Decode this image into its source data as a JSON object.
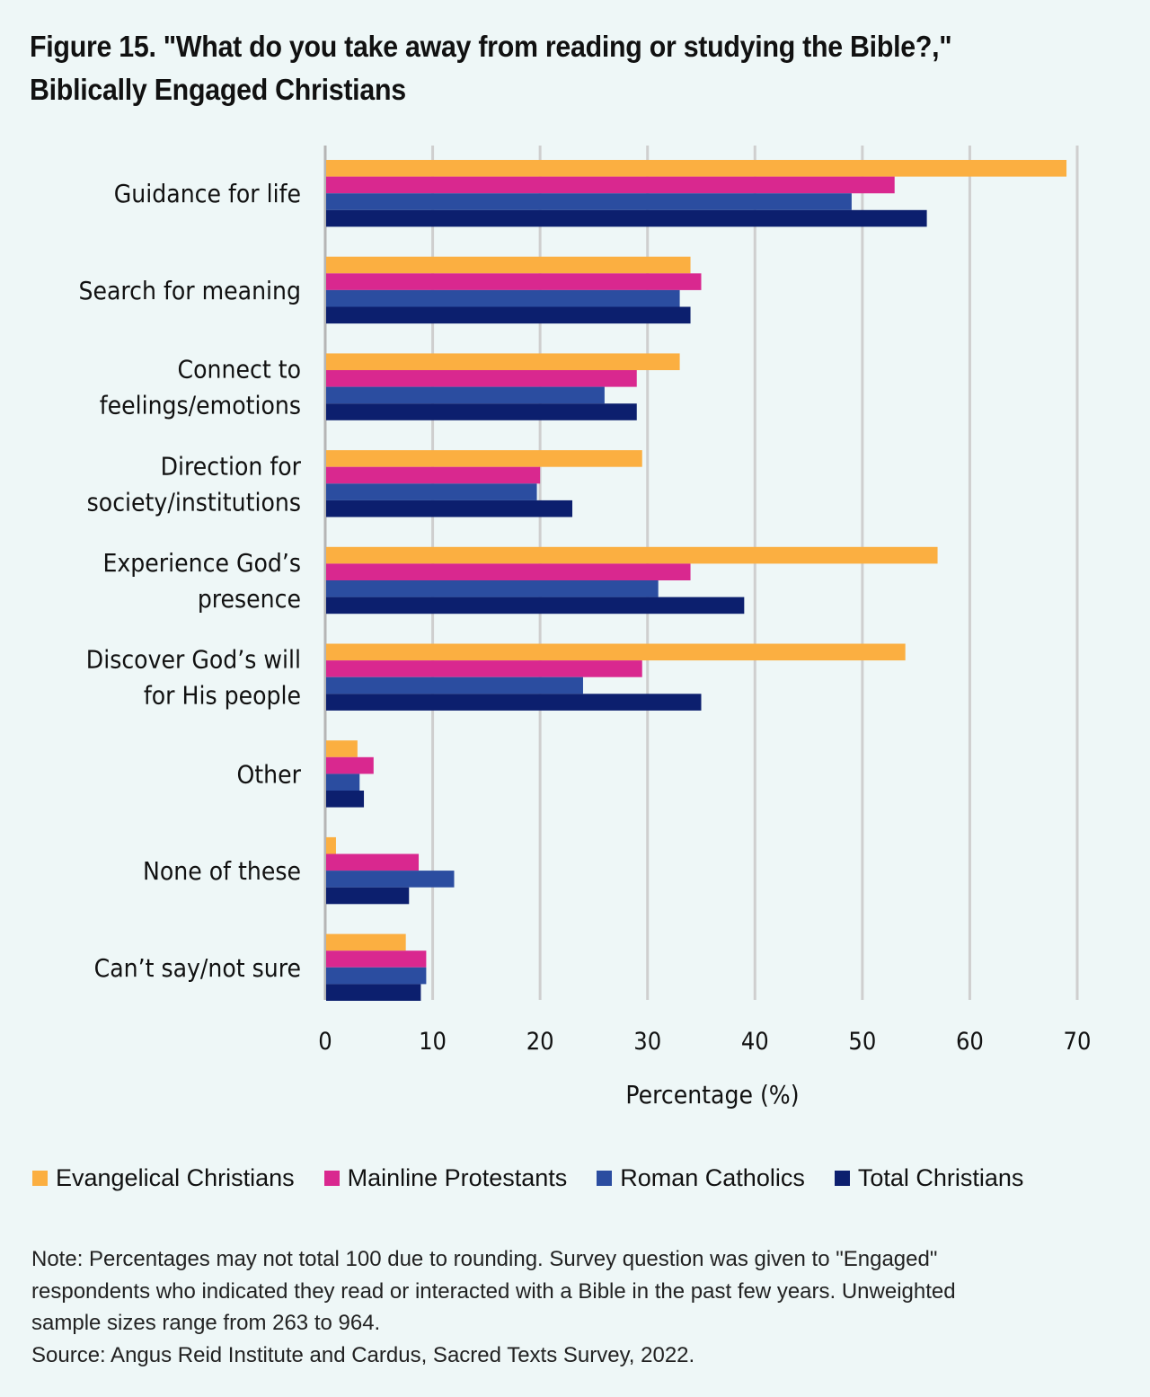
{
  "title_line1": "Figure 15. \"What do you take away from reading or studying the Bible?,\"",
  "title_line2": "Biblically Engaged Christians",
  "chart_data": {
    "type": "bar",
    "orientation": "horizontal",
    "title": "Figure 15. \"What do you take away from reading or studying the Bible?,\" Biblically Engaged Christians",
    "xlabel": "Percentage (%)",
    "ylabel": "",
    "xlim": [
      0,
      70
    ],
    "xticks": [
      0,
      10,
      20,
      30,
      40,
      50,
      60,
      70
    ],
    "grid": "vertical",
    "legend_position": "bottom",
    "categories": [
      [
        "Guidance for life"
      ],
      [
        "Search for meaning"
      ],
      [
        "Connect to",
        "feelings/emotions"
      ],
      [
        "Direction for",
        "society/institutions"
      ],
      [
        "Experience God’s",
        "presence"
      ],
      [
        "Discover God’s will",
        "for His people"
      ],
      [
        "Other"
      ],
      [
        "None of these"
      ],
      [
        "Can’t say/not sure"
      ]
    ],
    "series": [
      {
        "name": "Evangelical Christians",
        "color": "#fbaf41",
        "values": [
          69,
          34,
          33,
          29.5,
          57,
          54,
          3,
          1,
          7.5
        ]
      },
      {
        "name": "Mainline Protestants",
        "color": "#d9288f",
        "values": [
          53,
          35,
          29,
          20,
          34,
          29.5,
          4.5,
          8.7,
          9.4
        ]
      },
      {
        "name": "Roman Catholics",
        "color": "#2b4da0",
        "values": [
          49,
          33,
          26,
          19.7,
          31,
          24,
          3.2,
          12,
          9.4
        ]
      },
      {
        "name": "Total Christians",
        "color": "#0c1f6e",
        "values": [
          56,
          34,
          29,
          23,
          39,
          35,
          3.6,
          7.8,
          8.9
        ]
      }
    ]
  },
  "notes": [
    "Note: Percentages may not total 100 due to rounding. Survey question was given to \"Engaged\"",
    "respondents who indicated they read or interacted with a Bible in the past few years. Unweighted",
    "sample sizes range from 263 to 964.",
    "Source: Angus Reid Institute and Cardus, Sacred Texts Survey, 2022."
  ]
}
